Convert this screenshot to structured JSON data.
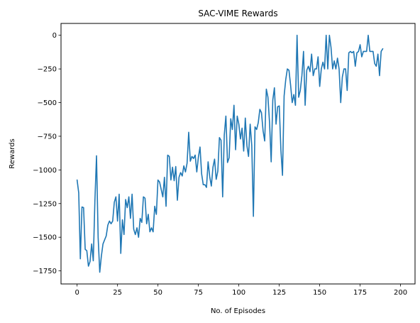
{
  "chart_data": {
    "type": "line",
    "title": "SAC-VIME Rewards",
    "xlabel": "No. of Episodes",
    "ylabel": "Rewards",
    "xlim": [
      -9.95,
      208.95
    ],
    "ylim": [
      -1847,
      88
    ],
    "xticks": [
      0,
      25,
      50,
      75,
      100,
      125,
      150,
      175,
      200
    ],
    "yticks": [
      0,
      -250,
      -500,
      -750,
      -1000,
      -1250,
      -1500,
      -1750
    ],
    "grid": false,
    "series_color": "#1f77b4",
    "x_start": 0,
    "x_step": 1,
    "values": [
      -1075,
      -1170,
      -1660,
      -1275,
      -1280,
      -1590,
      -1600,
      -1715,
      -1680,
      -1550,
      -1675,
      -1230,
      -895,
      -1500,
      -1760,
      -1640,
      -1550,
      -1520,
      -1490,
      -1410,
      -1380,
      -1400,
      -1380,
      -1240,
      -1200,
      -1380,
      -1180,
      -1620,
      -1370,
      -1480,
      -1220,
      -1280,
      -1200,
      -1360,
      -1180,
      -1440,
      -1480,
      -1430,
      -1500,
      -1360,
      -1390,
      -1200,
      -1210,
      -1400,
      -1330,
      -1460,
      -1430,
      -1460,
      -1270,
      -1330,
      -1075,
      -1090,
      -1145,
      -1200,
      -1055,
      -1270,
      -890,
      -900,
      -1075,
      -980,
      -1080,
      -975,
      -1225,
      -1055,
      -1020,
      -1045,
      -970,
      -1015,
      -950,
      -720,
      -935,
      -900,
      -915,
      -890,
      -1015,
      -905,
      -830,
      -1030,
      -1110,
      -1110,
      -1130,
      -940,
      -1050,
      -1120,
      -980,
      -920,
      -1070,
      -1010,
      -760,
      -780,
      -1200,
      -740,
      -600,
      -945,
      -910,
      -620,
      -700,
      -520,
      -850,
      -600,
      -660,
      -770,
      -690,
      -860,
      -615,
      -820,
      -900,
      -660,
      -820,
      -1345,
      -680,
      -700,
      -650,
      -550,
      -575,
      -710,
      -785,
      -400,
      -460,
      -650,
      -940,
      -480,
      -390,
      -660,
      -530,
      -525,
      -850,
      -1040,
      -450,
      -330,
      -250,
      -260,
      -370,
      -500,
      -440,
      -520,
      0,
      -460,
      -410,
      -300,
      -120,
      -520,
      -260,
      -230,
      -270,
      -140,
      -300,
      -250,
      -250,
      -160,
      -380,
      -250,
      -200,
      -250,
      0,
      -250,
      0,
      -90,
      -250,
      -190,
      -250,
      -170,
      -250,
      -500,
      -310,
      -250,
      -250,
      -410,
      -130,
      -120,
      -130,
      -120,
      -230,
      -130,
      -120,
      -70,
      -160,
      -120,
      -120,
      -120,
      0,
      -120,
      -120,
      -120,
      -210,
      -230,
      -140,
      -300,
      -120,
      -100
    ]
  }
}
